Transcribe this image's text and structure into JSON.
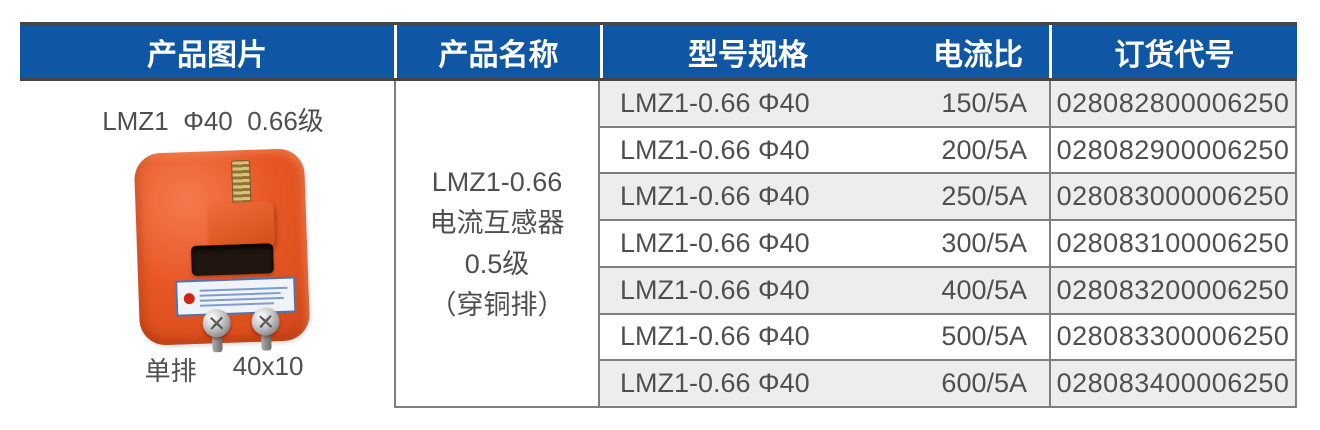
{
  "table": {
    "headers": [
      "产品图片",
      "产品名称",
      "型号规格",
      "电流比",
      "订货代号"
    ],
    "rows": [
      {
        "model": "LMZ1-0.66 Φ40",
        "ratio": "150/5A",
        "code": "028082800006250"
      },
      {
        "model": "LMZ1-0.66 Φ40",
        "ratio": "200/5A",
        "code": "028082900006250"
      },
      {
        "model": "LMZ1-0.66 Φ40",
        "ratio": "250/5A",
        "code": "028083000006250"
      },
      {
        "model": "LMZ1-0.66 Φ40",
        "ratio": "300/5A",
        "code": "028083100006250"
      },
      {
        "model": "LMZ1-0.66 Φ40",
        "ratio": "400/5A",
        "code": "028083200006250"
      },
      {
        "model": "LMZ1-0.66 Φ40",
        "ratio": "500/5A",
        "code": "028083300006250"
      },
      {
        "model": "LMZ1-0.66 Φ40",
        "ratio": "600/5A",
        "code": "028083400006250"
      }
    ]
  },
  "product": {
    "image_title": "LMZ1  Φ40  0.66级",
    "name_lines": [
      "LMZ1-0.66",
      "电流互感器",
      "0.5级",
      "（穿铜排）"
    ],
    "busbar_type": "单排",
    "busbar_size": "40x10"
  },
  "colors": {
    "header_bg": "#0F56A5",
    "header_text": "#FFFFFF",
    "row_alt_bg": "#EDEDED",
    "grid_line": "#7F7F7F",
    "dark_rule": "#454545",
    "body_text": "#4F4F4F",
    "product_orange": "#E85826"
  }
}
